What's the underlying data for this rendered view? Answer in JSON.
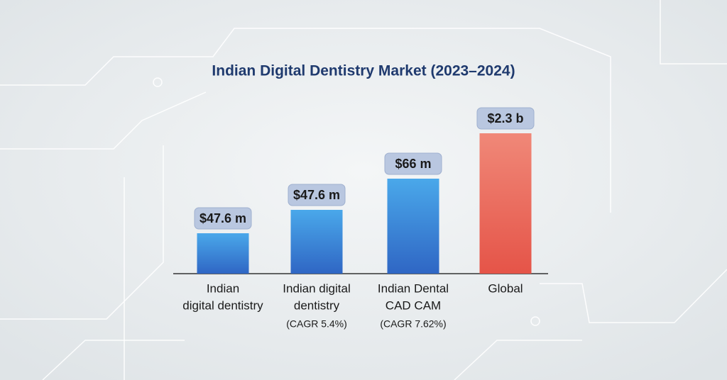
{
  "title": "Indian Digital Dentistry Market (2023–2024)",
  "items": [
    {
      "value": "$47.6 m",
      "label": [
        "Indian",
        "digital dentistry"
      ]
    },
    {
      "value": "$47.6 m",
      "label": [
        "Indian digital",
        "dentistry"
      ],
      "note": "(CAGR 5.4%)"
    },
    {
      "value": "$66 m",
      "label": [
        "Indian Dental",
        "CAD CAM"
      ],
      "note": "(CAGR 7.62%)"
    },
    {
      "value": "$2.3 b",
      "label": [
        "Global"
      ]
    }
  ]
}
